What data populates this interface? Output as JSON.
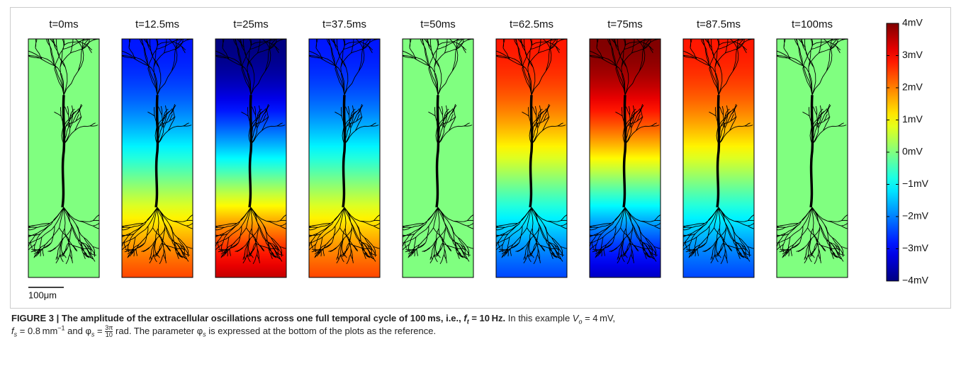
{
  "figure": {
    "panels": [
      "t=0ms",
      "t=12.5ms",
      "t=25ms",
      "t=37.5ms",
      "t=50ms",
      "t=62.5ms",
      "t=75ms",
      "t=87.5ms",
      "t=100ms"
    ],
    "colorbar_ticks": [
      "4mV",
      "3mV",
      "2mV",
      "1mV",
      "0mV",
      "−1mV",
      "−2mV",
      "−3mV",
      "−4mV"
    ],
    "scale_bar": "100μm",
    "caption": {
      "parts": [
        "FIGURE 3 | The amplitude of the extracellular oscillations across one full temporal cycle of 100 ms, i.e., ",
        "f",
        "t",
        " = 10 Hz.",
        " In this example ",
        "V",
        "o",
        " = 4 mV,",
        "f",
        "s",
        " = 0.8 mm",
        "−1",
        " and φ",
        "s",
        " = ",
        "3π",
        "10",
        " rad. The parameter φ",
        "s",
        " is expressed at the bottom of the plots as the reference."
      ]
    }
  }
}
